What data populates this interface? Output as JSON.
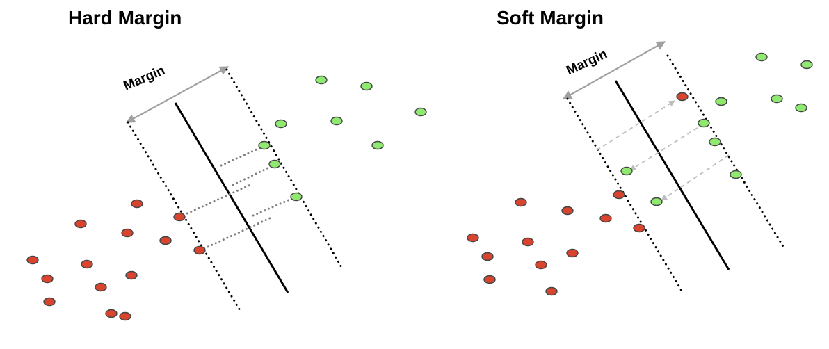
{
  "panels": {
    "hard": {
      "title": "Hard Margin",
      "margin_label": "Margin"
    },
    "soft": {
      "title": "Soft Margin",
      "margin_label": "Margin"
    }
  },
  "colors": {
    "green_point": "#8fe870",
    "red_point": "#d9442f",
    "point_stroke": "#444444",
    "boundary": "#000000",
    "margin_arrow": "#a0a0a0",
    "hard_connector": "#808080",
    "soft_connector": "#bdbdbd"
  }
}
